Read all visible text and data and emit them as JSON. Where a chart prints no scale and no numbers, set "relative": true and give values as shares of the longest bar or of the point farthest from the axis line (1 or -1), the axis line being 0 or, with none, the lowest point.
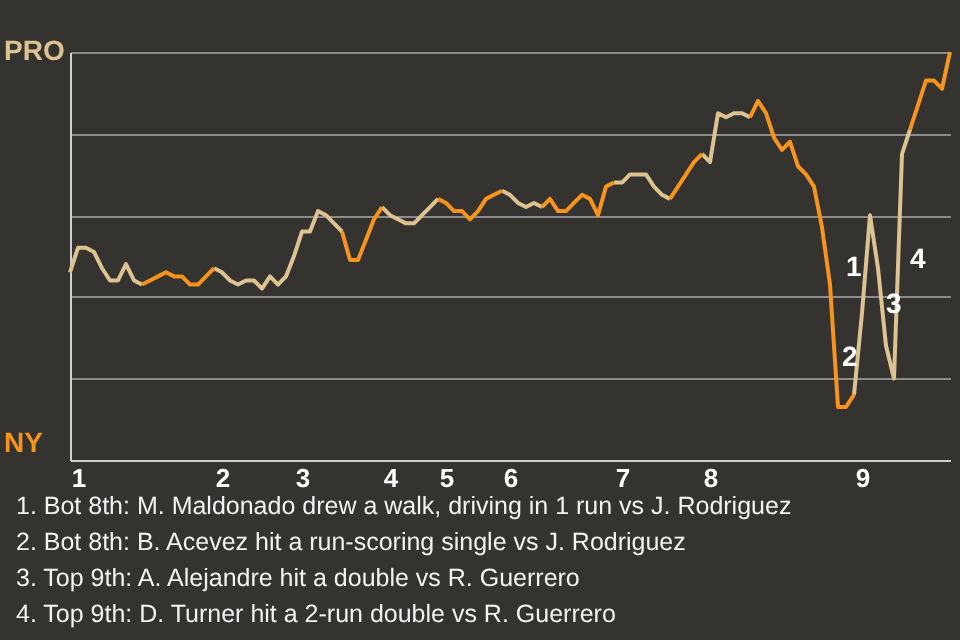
{
  "chart_data": {
    "type": "line",
    "relative": true,
    "grid": "y",
    "categories": [
      null,
      "1",
      null,
      null,
      null,
      null,
      null,
      null,
      null,
      null,
      null,
      null,
      null,
      null,
      null,
      null,
      null,
      null,
      null,
      "2",
      null,
      null,
      null,
      null,
      null,
      null,
      null,
      null,
      null,
      "3",
      null,
      null,
      null,
      null,
      null,
      null,
      null,
      null,
      null,
      null,
      "4",
      null,
      null,
      null,
      null,
      null,
      null,
      "5",
      null,
      null,
      null,
      null,
      null,
      null,
      null,
      "6",
      null,
      null,
      null,
      null,
      null,
      null,
      null,
      null,
      null,
      null,
      null,
      null,
      null,
      "7",
      null,
      null,
      null,
      null,
      null,
      null,
      null,
      null,
      null,
      null,
      "8",
      null,
      null,
      null,
      null,
      null,
      null,
      null,
      null,
      null,
      null,
      null,
      null,
      null,
      null,
      null,
      null,
      null,
      null,
      "9",
      null,
      null,
      null,
      null,
      null,
      null,
      null,
      null,
      null,
      null,
      null
    ],
    "series": [
      {
        "name": "PRO",
        "color": "#dcc391",
        "values": [
          0.46,
          0.52,
          0.52,
          0.51,
          0.47,
          0.44,
          0.44,
          0.48,
          0.44,
          0.43,
          null,
          null,
          null,
          null,
          null,
          null,
          null,
          null,
          0.47,
          0.46,
          0.44,
          0.43,
          0.44,
          0.44,
          0.42,
          0.45,
          0.43,
          0.45,
          0.5,
          0.56,
          0.56,
          0.61,
          0.6,
          0.58,
          0.56,
          null,
          null,
          null,
          null,
          0.62,
          0.6,
          0.59,
          0.58,
          0.58,
          0.6,
          0.62,
          0.64,
          null,
          null,
          null,
          null,
          null,
          null,
          null,
          0.66,
          0.65,
          0.63,
          0.62,
          0.63,
          0.62,
          null,
          null,
          null,
          null,
          null,
          null,
          null,
          null,
          0.68,
          0.68,
          0.7,
          0.7,
          0.7,
          0.67,
          0.65,
          0.64,
          null,
          null,
          null,
          0.75,
          0.73,
          0.85,
          0.84,
          0.85,
          0.85,
          0.84,
          null,
          null,
          null,
          null,
          null,
          null,
          null,
          null,
          null,
          null,
          null,
          null,
          0.16,
          0.36,
          0.6,
          0.47,
          0.28,
          0.2,
          0.75,
          0.81,
          null,
          null,
          null,
          null,
          null
        ]
      },
      {
        "name": "NY",
        "color": "#f7941d",
        "values": [
          null,
          null,
          null,
          null,
          null,
          null,
          null,
          null,
          null,
          0.43,
          0.44,
          0.45,
          0.46,
          0.45,
          0.45,
          0.43,
          0.43,
          0.45,
          0.47,
          null,
          null,
          null,
          null,
          null,
          null,
          null,
          null,
          null,
          null,
          null,
          null,
          null,
          null,
          null,
          0.56,
          0.49,
          0.49,
          0.54,
          0.59,
          0.62,
          null,
          null,
          null,
          null,
          null,
          null,
          0.64,
          0.63,
          0.61,
          0.61,
          0.59,
          0.61,
          0.64,
          0.65,
          0.66,
          null,
          null,
          null,
          null,
          0.62,
          0.64,
          0.61,
          0.61,
          0.63,
          0.65,
          0.64,
          0.6,
          0.67,
          0.68,
          null,
          null,
          null,
          null,
          null,
          null,
          0.64,
          0.67,
          0.7,
          0.73,
          0.75,
          null,
          null,
          null,
          null,
          null,
          0.84,
          0.88,
          0.85,
          0.79,
          0.76,
          0.78,
          0.72,
          0.7,
          0.67,
          0.57,
          0.43,
          0.13,
          0.13,
          0.16,
          null,
          null,
          null,
          null,
          null,
          null,
          0.81,
          0.87,
          0.93,
          0.93,
          0.91,
          1
        ]
      }
    ],
    "annotations": [
      "1",
      "2",
      "3",
      "4",
      "1. Bot 8th: M. Maldonado drew a walk, driving in 1 run vs J. Rodriguez",
      "2. Bot 8th: B. Acevez hit a run-scoring single vs J. Rodriguez",
      "3. Top 9th: A. Alejandre hit a double vs R. Guerrero",
      "4. Top 9th: D. Turner hit a 2-run double vs R. Guerrero"
    ]
  }
}
